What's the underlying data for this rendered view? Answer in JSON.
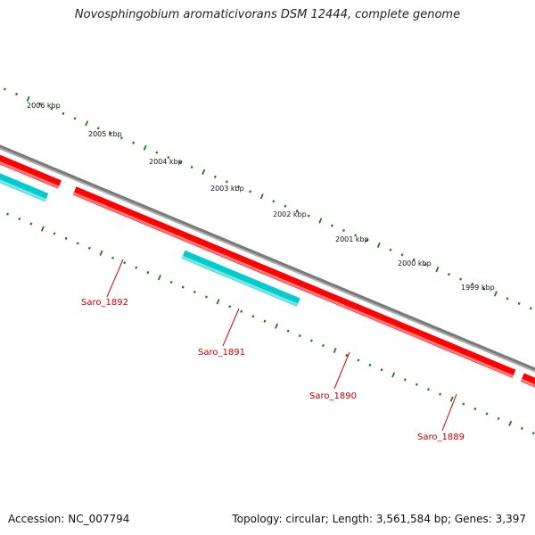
{
  "title": "Novosphingobium aromaticivorans DSM 12444, complete genome",
  "footer": {
    "accession": "Accession: NC_007794",
    "summary": "Topology: circular; Length: 3,561,584 bp; Genes: 3,397"
  },
  "colors": {
    "backbone": "#7a7a7a",
    "forward_gene": "#ff0000",
    "reverse_gene": "#00cccc",
    "tick": "#1e7a1e",
    "gene_label": "#cc0000",
    "kbp_label": "#111111"
  },
  "ruler": {
    "unit": "kbp",
    "labels": [
      "2006 kbp",
      "2005 kbp",
      "2004 kbp",
      "2003 kbp",
      "2002 kbp",
      "2001 kbp",
      "2000 kbp",
      "1999 kbp"
    ]
  },
  "genes": [
    {
      "label": "Saro_1892",
      "strand": "forward"
    },
    {
      "label": "Saro_1891",
      "strand": "reverse"
    },
    {
      "label": "Saro_1890",
      "strand": "forward"
    },
    {
      "label": "Saro_1889",
      "strand": "forward"
    }
  ]
}
